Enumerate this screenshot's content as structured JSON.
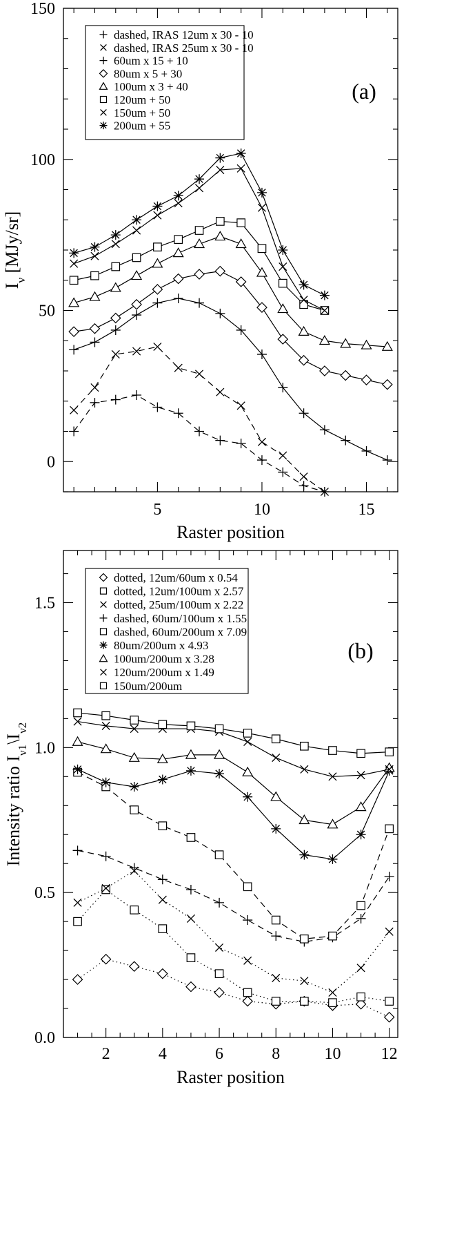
{
  "chart_data": [
    {
      "type": "line",
      "panel_label": "(a)",
      "xlabel": "Raster position",
      "ylabel": "I_ν [MJy/sr]",
      "ylabel_main": "I",
      "ylabel_sub": "ν",
      "ylabel_unit": " [MJy/sr]",
      "xlim": [
        0.5,
        16.5
      ],
      "ylim": [
        -10,
        150
      ],
      "xticks": [
        5,
        10,
        15
      ],
      "xtick_labels": [
        "5",
        "10",
        "15"
      ],
      "yticks": [
        0,
        50,
        100,
        150
      ],
      "ytick_labels": [
        "0",
        "50",
        "100",
        "150"
      ],
      "legend_position": "top",
      "series": [
        {
          "name": "dashed, IRAS 12um x 30 - 10",
          "marker": "plus",
          "line": "dashed",
          "x": [
            1,
            2,
            3,
            4,
            5,
            6,
            7,
            8,
            9,
            10,
            11,
            12,
            13
          ],
          "y": [
            10,
            19.5,
            20.5,
            22,
            18,
            16,
            10,
            7,
            6,
            0.5,
            -3.5,
            -8,
            -10
          ]
        },
        {
          "name": "dashed, IRAS 25um x 30 - 10",
          "marker": "cross",
          "line": "dashed",
          "x": [
            1,
            2,
            3,
            4,
            5,
            6,
            7,
            8,
            9,
            10,
            11,
            12,
            13
          ],
          "y": [
            17,
            24.5,
            35.5,
            36.5,
            38,
            31,
            29,
            23,
            18.5,
            6.5,
            2,
            -5,
            -10
          ]
        },
        {
          "name": "60um x 15 + 10",
          "marker": "plus",
          "line": "solid",
          "x": [
            1,
            2,
            3,
            4,
            5,
            6,
            7,
            8,
            9,
            10,
            11,
            12,
            13,
            14,
            15,
            16
          ],
          "y": [
            37,
            39.5,
            43.5,
            48.5,
            52.5,
            54,
            52.5,
            49,
            43.5,
            35.5,
            24.5,
            16,
            10.5,
            7,
            3.5,
            0.5
          ]
        },
        {
          "name": "80um x 5 + 30",
          "marker": "diamond",
          "line": "solid",
          "x": [
            1,
            2,
            3,
            4,
            5,
            6,
            7,
            8,
            9,
            10,
            11,
            12,
            13,
            14,
            15,
            16
          ],
          "y": [
            43,
            44,
            47.5,
            52,
            57,
            60.5,
            62,
            63,
            59.5,
            51,
            40.5,
            33.5,
            30,
            28.5,
            27,
            25.5
          ]
        },
        {
          "name": "100um x 3 + 40",
          "marker": "triangle",
          "line": "solid",
          "x": [
            1,
            2,
            3,
            4,
            5,
            6,
            7,
            8,
            9,
            10,
            11,
            12,
            13,
            14,
            15,
            16
          ],
          "y": [
            52.5,
            54.5,
            57.5,
            61.5,
            65.5,
            69,
            72,
            74.5,
            72,
            62.5,
            50.5,
            43,
            40,
            39,
            38.5,
            38
          ]
        },
        {
          "name": "120um + 50",
          "marker": "square",
          "line": "solid",
          "x": [
            1,
            2,
            3,
            4,
            5,
            6,
            7,
            8,
            9,
            10,
            11,
            12,
            13
          ],
          "y": [
            60,
            61.5,
            64.5,
            67.5,
            71,
            73.5,
            76.5,
            79.5,
            79,
            70.5,
            59,
            52,
            50
          ]
        },
        {
          "name": "150um + 50",
          "marker": "cross",
          "line": "solid",
          "x": [
            1,
            2,
            3,
            4,
            5,
            6,
            7,
            8,
            9,
            10,
            11,
            12,
            13
          ],
          "y": [
            65.5,
            68,
            72,
            76.5,
            81.5,
            85.5,
            90.5,
            96.5,
            97,
            84,
            64.5,
            53.5,
            50
          ]
        },
        {
          "name": "200um + 55",
          "marker": "asterisk",
          "line": "solid",
          "x": [
            1,
            2,
            3,
            4,
            5,
            6,
            7,
            8,
            9,
            10,
            11,
            12,
            13
          ],
          "y": [
            69,
            71,
            75,
            80,
            84.5,
            88,
            93.5,
            100.5,
            102,
            89,
            70,
            58.5,
            55
          ]
        }
      ]
    },
    {
      "type": "line",
      "panel_label": "(b)",
      "xlabel": "Raster position",
      "ylabel": "Intensity ratio I_ν1\\I_ν2",
      "ylabel_main": "Intensity ratio I",
      "ylabel_sub1": "ν1",
      "ylabel_mid": "\\I",
      "ylabel_sub2": "ν2",
      "xlim": [
        0.5,
        12.3
      ],
      "ylim": [
        0,
        1.68
      ],
      "xticks": [
        2,
        4,
        6,
        8,
        10,
        12
      ],
      "xtick_labels": [
        "2",
        "4",
        "6",
        "8",
        "10",
        "12"
      ],
      "yticks": [
        0,
        0.5,
        1.0,
        1.5
      ],
      "ytick_labels": [
        "0.0",
        "0.5",
        "1.0",
        "1.5"
      ],
      "legend_position": "top",
      "series": [
        {
          "name": "dotted, 12um/60um x 0.54",
          "marker": "diamond",
          "line": "dotted",
          "x": [
            1,
            2,
            3,
            4,
            5,
            6,
            7,
            8,
            9,
            10,
            11,
            12
          ],
          "y": [
            0.2,
            0.27,
            0.245,
            0.22,
            0.175,
            0.155,
            0.125,
            0.115,
            0.125,
            0.11,
            0.115,
            0.07
          ]
        },
        {
          "name": "dotted, 12um/100um x 2.57",
          "marker": "square",
          "line": "dotted",
          "x": [
            1,
            2,
            3,
            4,
            5,
            6,
            7,
            8,
            9,
            10,
            11,
            12
          ],
          "y": [
            0.4,
            0.51,
            0.44,
            0.375,
            0.275,
            0.22,
            0.155,
            0.125,
            0.125,
            0.12,
            0.14,
            0.125
          ]
        },
        {
          "name": "dotted, 25um/100um x 2.22",
          "marker": "cross",
          "line": "dotted",
          "x": [
            1,
            2,
            3,
            4,
            5,
            6,
            7,
            8,
            9,
            10,
            11,
            12
          ],
          "y": [
            0.465,
            0.515,
            0.575,
            0.475,
            0.41,
            0.31,
            0.265,
            0.205,
            0.195,
            0.155,
            0.24,
            0.365
          ]
        },
        {
          "name": "dashed, 60um/100um x 1.55",
          "marker": "plus",
          "line": "dashed",
          "x": [
            1,
            2,
            3,
            4,
            5,
            6,
            7,
            8,
            9,
            10,
            11,
            12
          ],
          "y": [
            0.645,
            0.625,
            0.585,
            0.545,
            0.51,
            0.465,
            0.405,
            0.35,
            0.33,
            0.345,
            0.41,
            0.555
          ]
        },
        {
          "name": "dashed, 60um/200um x 7.09",
          "marker": "square",
          "line": "dashed",
          "x": [
            1,
            2,
            3,
            4,
            5,
            6,
            7,
            8,
            9,
            10,
            11,
            12
          ],
          "y": [
            0.915,
            0.865,
            0.785,
            0.73,
            0.69,
            0.63,
            0.52,
            0.405,
            0.34,
            0.35,
            0.455,
            0.72
          ]
        },
        {
          "name": "80um/200um x 4.93",
          "marker": "asterisk",
          "line": "solid",
          "x": [
            1,
            2,
            3,
            4,
            5,
            6,
            7,
            8,
            9,
            10,
            11,
            12
          ],
          "y": [
            0.925,
            0.88,
            0.865,
            0.89,
            0.92,
            0.91,
            0.83,
            0.72,
            0.63,
            0.615,
            0.7,
            0.92
          ]
        },
        {
          "name": "100um/200um x 3.28",
          "marker": "triangle",
          "line": "solid",
          "x": [
            1,
            2,
            3,
            4,
            5,
            6,
            7,
            8,
            9,
            10,
            11,
            12
          ],
          "y": [
            1.02,
            0.995,
            0.965,
            0.96,
            0.975,
            0.975,
            0.915,
            0.83,
            0.75,
            0.735,
            0.795,
            0.93
          ]
        },
        {
          "name": "120um/200um x 1.49",
          "marker": "cross",
          "line": "solid",
          "x": [
            1,
            2,
            3,
            4,
            5,
            6,
            7,
            8,
            9,
            10,
            11,
            12
          ],
          "y": [
            1.09,
            1.075,
            1.065,
            1.065,
            1.065,
            1.055,
            1.02,
            0.965,
            0.925,
            0.9,
            0.905,
            0.925
          ]
        },
        {
          "name": "150um/200um",
          "marker": "square",
          "line": "solid",
          "x": [
            1,
            2,
            3,
            4,
            5,
            6,
            7,
            8,
            9,
            10,
            11,
            12
          ],
          "y": [
            1.12,
            1.11,
            1.095,
            1.08,
            1.075,
            1.065,
            1.05,
            1.03,
            1.005,
            0.99,
            0.98,
            0.985
          ]
        }
      ]
    }
  ]
}
